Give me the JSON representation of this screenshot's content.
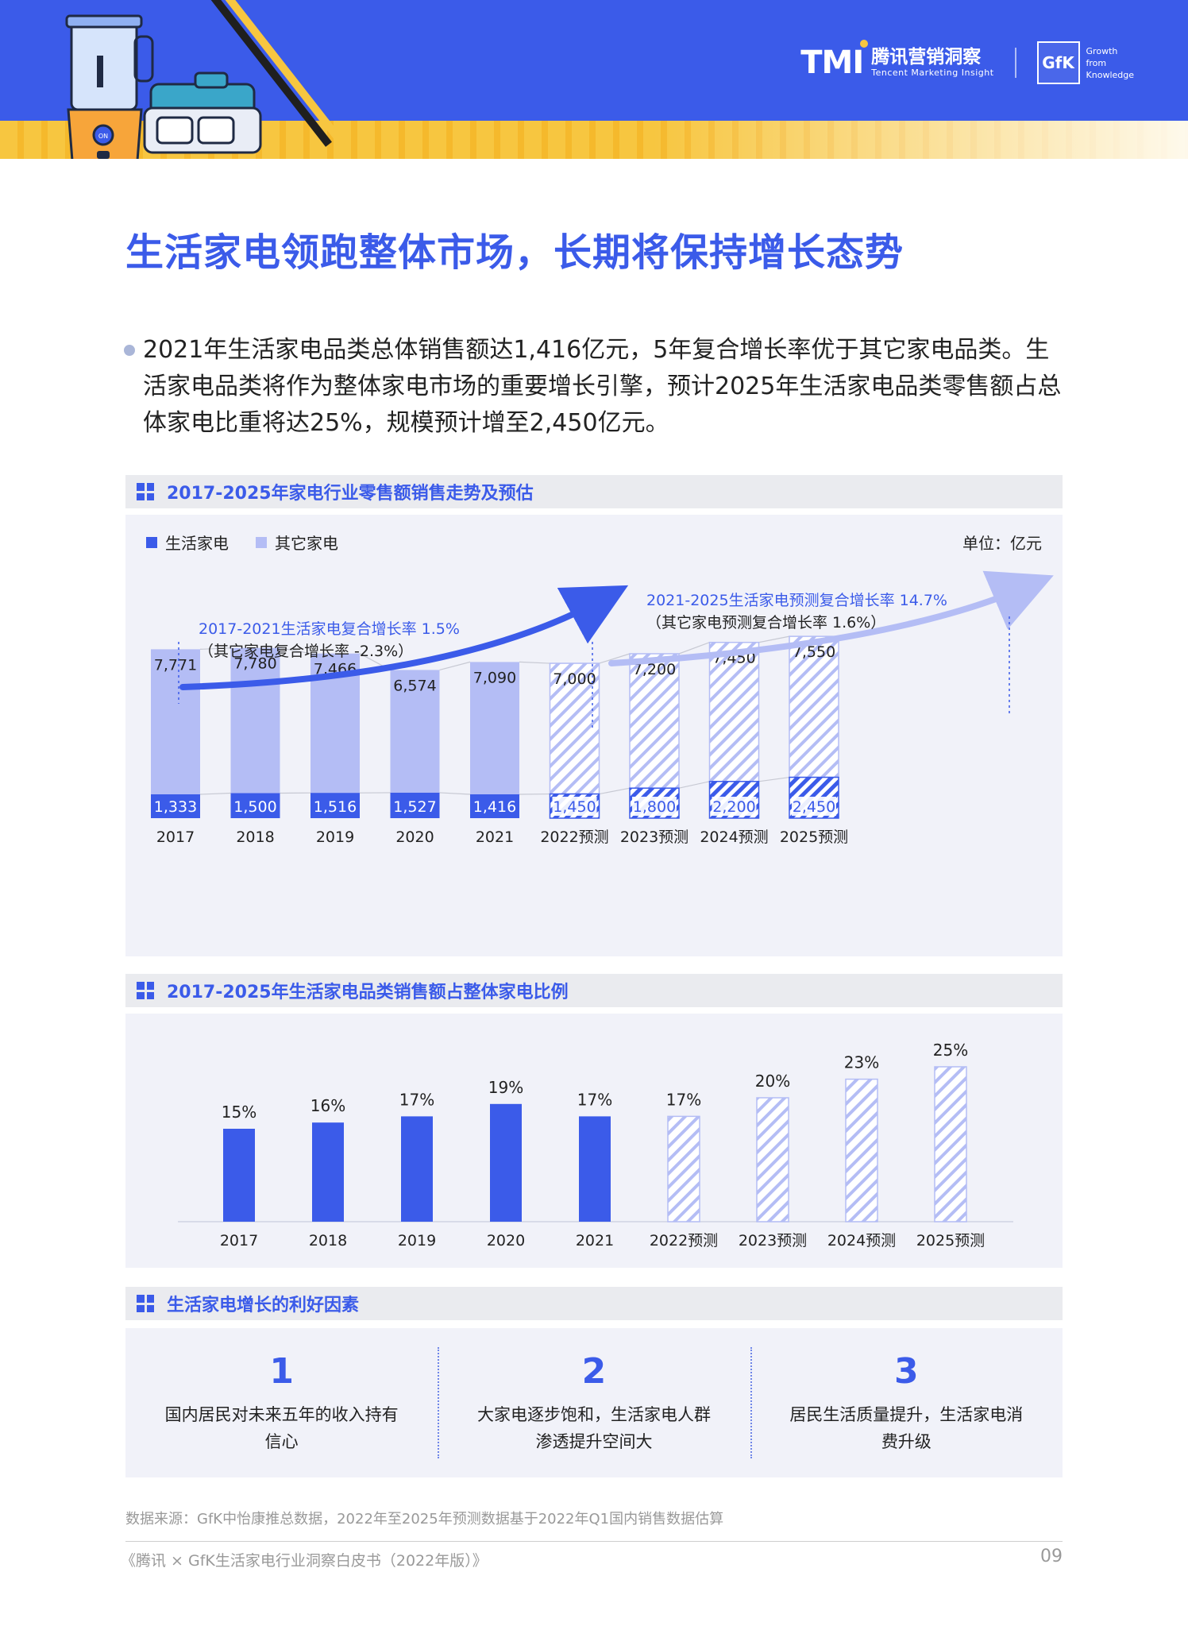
{
  "header": {
    "brand_mark": "TMI",
    "brand_cn": "腾讯营销洞察",
    "brand_en": "Tencent Marketing Insight",
    "gfk_mark": "GfK",
    "gfk_tag1": "Growth",
    "gfk_tag2": "from",
    "gfk_tag3": "Knowledge"
  },
  "title": "生活家电领跑整体市场，长期将保持增长态势",
  "intro": "2021年生活家电品类总体销售额达1,416亿元，5年复合增长率优于其它家电品类。生活家电品类将作为整体家电市场的重要增长引擎，预计2025年生活家电品类零售额占总体家电比重将达25%，规模预计增至2,450亿元。",
  "section1": {
    "title": "2017-2025年家电行业零售额销售走势及预估",
    "unit": "单位：亿元",
    "legend": [
      "生活家电",
      "其它家电"
    ],
    "annot_left_1": "2017-2021生活家电复合增长率 1.5%",
    "annot_left_2": "（其它家电复合增长率 -2.3%）",
    "annot_right_1": "2021-2025生活家电预测复合增长率 14.7%",
    "annot_right_2": "（其它家电预测复合增长率 1.6%）"
  },
  "section2": {
    "title": "2017-2025年生活家电品类销售额占整体家电比例"
  },
  "section3": {
    "title": "生活家电增长的利好因素",
    "factors": [
      {
        "num": "1",
        "text": "国内居民对未来五年的收入持有信心"
      },
      {
        "num": "2",
        "text": "大家电逐步饱和，生活家电人群渗透提升空间大"
      },
      {
        "num": "3",
        "text": "居民生活质量提升，生活家电消费升级"
      }
    ]
  },
  "source": "数据来源：GfK中怡康推总数据，2022年至2025年预测数据基于2022年Q1国内销售数据估算",
  "footer": {
    "left": "《腾讯 × GfK生活家电行业洞察白皮书（2022年版）》",
    "page": "09"
  },
  "colors": {
    "primary": "#3b5be9",
    "light": "#b4bdf5",
    "panel": "#f1f2f9"
  },
  "chart_data": [
    {
      "type": "bar",
      "stacked": true,
      "title": "2017-2025年家电行业零售额销售走势及预估",
      "unit": "亿元",
      "categories": [
        "2017",
        "2018",
        "2019",
        "2020",
        "2021",
        "2022预测",
        "2023预测",
        "2024预测",
        "2025预测"
      ],
      "forecast_from_index": 5,
      "series": [
        {
          "name": "生活家电",
          "values": [
            1333,
            1500,
            1516,
            1527,
            1416,
            1450,
            1800,
            2200,
            2450
          ]
        },
        {
          "name": "其它家电",
          "values": [
            7771,
            7780,
            7466,
            6574,
            7090,
            7000,
            7200,
            7450,
            7550
          ]
        }
      ]
    },
    {
      "type": "bar",
      "title": "2017-2025年生活家电品类销售额占整体家电比例",
      "categories": [
        "2017",
        "2018",
        "2019",
        "2020",
        "2021",
        "2022预测",
        "2023预测",
        "2024预测",
        "2025预测"
      ],
      "forecast_from_index": 5,
      "values": [
        15,
        16,
        17,
        19,
        17,
        17,
        20,
        23,
        25
      ],
      "labels": [
        "15%",
        "16%",
        "17%",
        "19%",
        "17%",
        "17%",
        "20%",
        "23%",
        "25%"
      ]
    }
  ]
}
